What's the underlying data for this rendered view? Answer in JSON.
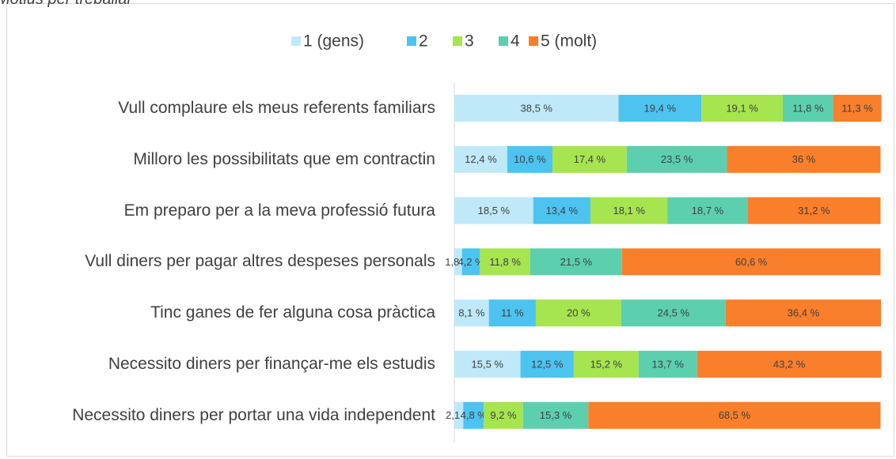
{
  "chart_data": {
    "type": "stacked-bar-horizontal",
    "title": "Motius per treballar",
    "categories": [
      "Vull complaure els meus referents familiars",
      "Milloro les possibilitats que em contractin",
      "Em preparo per a la meva professió futura",
      "Vull diners per pagar altres despeses personals",
      "Tinc ganes de fer alguna cosa pràctica",
      "Necessito diners per finançar-me els estudis",
      "Necessito diners per portar una vida independent"
    ],
    "xlim": [
      0,
      100
    ],
    "legend": "top",
    "series": [
      {
        "name": "1 (gens)",
        "color": "#bfe9f8",
        "values": [
          38.5,
          12.4,
          18.5,
          1.8,
          8.1,
          15.5,
          2.1
        ],
        "value_labels": [
          "38,5 %",
          "12,4 %",
          "18,5 %",
          "1,8 %",
          "8,1 %",
          "15,5 %",
          "2,1 %"
        ]
      },
      {
        "name": "2",
        "color": "#4dc3f0",
        "values": [
          19.4,
          10.6,
          13.4,
          4.2,
          11,
          12.5,
          4.8
        ],
        "value_labels": [
          "19,4 %",
          "10,6 %",
          "13,4 %",
          "4,2 %",
          "11 %",
          "12,5 %",
          "4,8 %"
        ]
      },
      {
        "name": "3",
        "color": "#a6e450",
        "values": [
          19.1,
          17.4,
          18.1,
          11.8,
          20,
          15.2,
          9.2
        ],
        "value_labels": [
          "19,1 %",
          "17,4 %",
          "18,1 %",
          "11,8 %",
          "20 %",
          "15,2 %",
          "9,2 %"
        ]
      },
      {
        "name": "4",
        "color": "#5ccfae",
        "values": [
          11.8,
          23.5,
          18.7,
          21.5,
          24.5,
          13.7,
          15.3
        ],
        "value_labels": [
          "11,8 %",
          "23,5 %",
          "18,7 %",
          "21,5 %",
          "24,5 %",
          "13,7 %",
          "15,3 %"
        ]
      },
      {
        "name": "5 (molt)",
        "color": "#f97f2b",
        "values": [
          11.3,
          36,
          31.2,
          60.6,
          36.4,
          43.2,
          68.5
        ],
        "value_labels": [
          "11,3 %",
          "36 %",
          "31,2 %",
          "60,6 %",
          "36,4 %",
          "43,2 %",
          "68,5 %"
        ]
      }
    ]
  }
}
